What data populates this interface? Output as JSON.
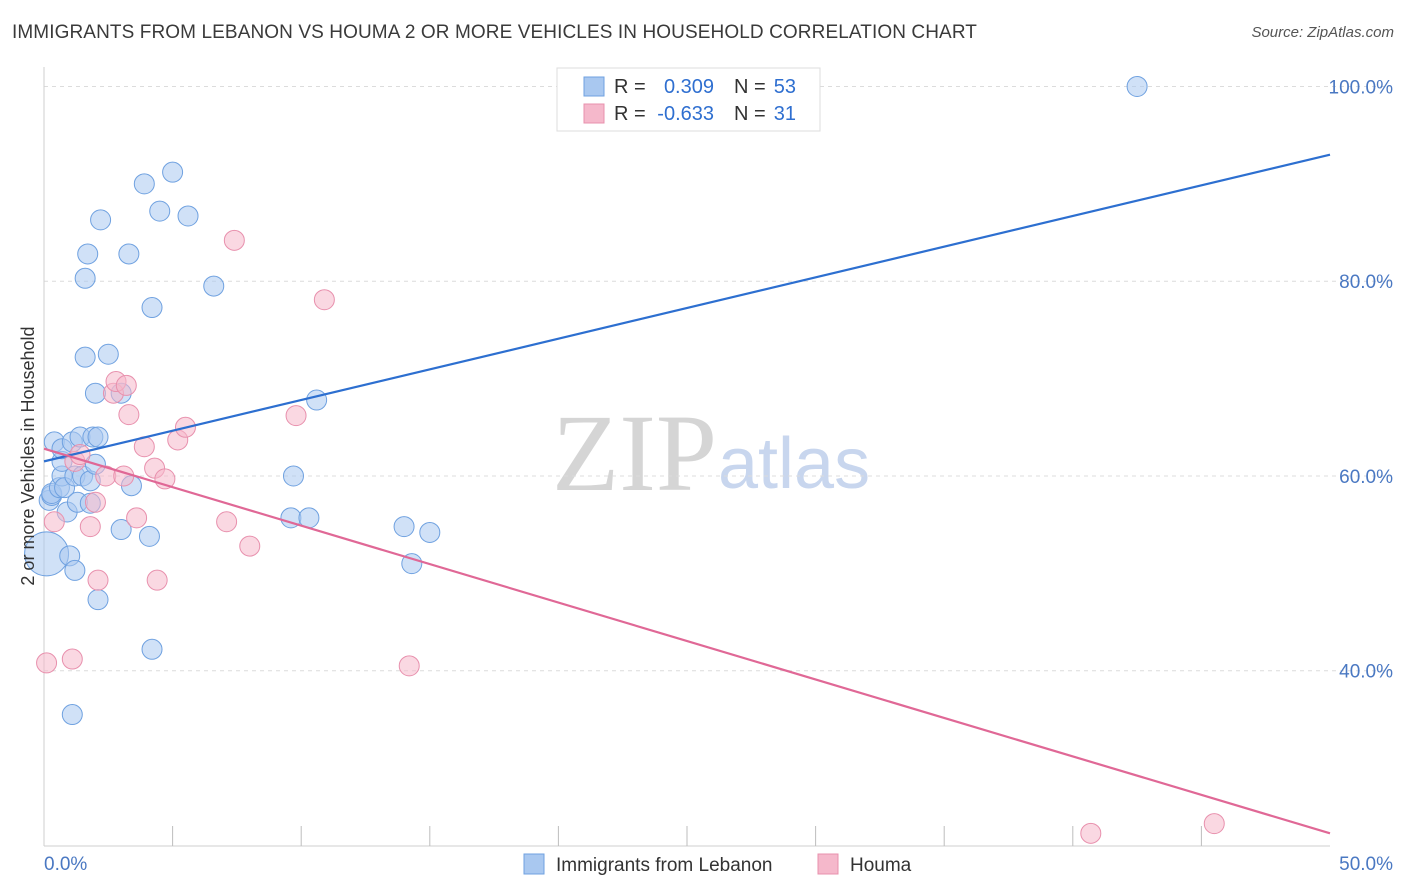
{
  "header": {
    "title": "IMMIGRANTS FROM LEBANON VS HOUMA 2 OR MORE VEHICLES IN HOUSEHOLD CORRELATION CHART",
    "source": "Source: ZipAtlas.com"
  },
  "watermark": {
    "zip": "ZIP",
    "atlas": "atlas"
  },
  "legend": {
    "rows": [
      {
        "r_label": "R =",
        "r_value": "0.309",
        "n_label": "N =",
        "n_value": "53",
        "color": "#a9c8f0"
      },
      {
        "r_label": "R =",
        "r_value": "-0.633",
        "n_label": "N =",
        "n_value": "31",
        "color": "#f5b8cb"
      }
    ]
  },
  "bottom_legend": {
    "items": [
      {
        "label": "Immigrants from Lebanon",
        "color": "#a9c8f0"
      },
      {
        "label": "Houma",
        "color": "#f5b8cb"
      }
    ]
  },
  "chart_data": {
    "type": "scatter",
    "ylabel": "2 or more Vehicles in Household",
    "xlabel": "",
    "xlim": [
      0,
      50
    ],
    "ylim": [
      22,
      102
    ],
    "x_tick_labels": [
      {
        "x": 0,
        "label": "0.0%"
      },
      {
        "x": 50,
        "label": "50.0%"
      }
    ],
    "y_tick_labels": [
      {
        "y": 100,
        "label": "100.0%"
      },
      {
        "y": 80,
        "label": "80.0%"
      },
      {
        "y": 60,
        "label": "60.0%"
      },
      {
        "y": 40,
        "label": "40.0%"
      }
    ],
    "y_gridlines": [
      100,
      80,
      60,
      40
    ],
    "x_minor_ticks": [
      5,
      10,
      15,
      20,
      25,
      30,
      35,
      40,
      45
    ],
    "series": [
      {
        "name": "Immigrants from Lebanon",
        "color": "#6fa1e0",
        "fill": "#a9c8f0",
        "trend": {
          "x": [
            0,
            50
          ],
          "y": [
            61.5,
            93.0
          ],
          "color": "#2d6fd0"
        },
        "points": [
          [
            0.1,
            52.0,
            22
          ],
          [
            0.2,
            57.5,
            10
          ],
          [
            0.3,
            58.0,
            10
          ],
          [
            0.3,
            58.2,
            10
          ],
          [
            0.4,
            63.5,
            10
          ],
          [
            0.6,
            58.8,
            10
          ],
          [
            0.7,
            60.0,
            10
          ],
          [
            0.7,
            61.5,
            10
          ],
          [
            0.7,
            62.8,
            10
          ],
          [
            0.8,
            58.8,
            10
          ],
          [
            0.9,
            56.3,
            10
          ],
          [
            1.0,
            51.8,
            10
          ],
          [
            1.1,
            63.5,
            10
          ],
          [
            1.1,
            35.5,
            10
          ],
          [
            1.2,
            50.3,
            10
          ],
          [
            1.2,
            60.0,
            10
          ],
          [
            1.3,
            57.3,
            10
          ],
          [
            1.4,
            64.0,
            10
          ],
          [
            1.5,
            60.0,
            10
          ],
          [
            1.6,
            72.2,
            10
          ],
          [
            1.6,
            80.3,
            10
          ],
          [
            1.7,
            82.8,
            10
          ],
          [
            1.8,
            59.5,
            10
          ],
          [
            1.8,
            57.2,
            10
          ],
          [
            1.9,
            64.0,
            10
          ],
          [
            2.0,
            61.2,
            10
          ],
          [
            2.0,
            68.5,
            10
          ],
          [
            2.1,
            64.0,
            10
          ],
          [
            2.1,
            47.3,
            10
          ],
          [
            2.2,
            86.3,
            10
          ],
          [
            2.5,
            72.5,
            10
          ],
          [
            3.0,
            68.5,
            10
          ],
          [
            3.0,
            54.5,
            10
          ],
          [
            3.3,
            82.8,
            10
          ],
          [
            3.4,
            59.0,
            10
          ],
          [
            3.9,
            90.0,
            10
          ],
          [
            4.1,
            53.8,
            10
          ],
          [
            4.2,
            42.2,
            10
          ],
          [
            4.2,
            77.3,
            10
          ],
          [
            4.5,
            87.2,
            10
          ],
          [
            5.0,
            91.2,
            10
          ],
          [
            5.6,
            86.7,
            10
          ],
          [
            6.6,
            79.5,
            10
          ],
          [
            9.6,
            55.7,
            10
          ],
          [
            9.7,
            60.0,
            10
          ],
          [
            10.3,
            55.7,
            10
          ],
          [
            10.6,
            67.8,
            10
          ],
          [
            14.0,
            54.8,
            10
          ],
          [
            14.3,
            51.0,
            10
          ],
          [
            15.0,
            54.2,
            10
          ],
          [
            42.5,
            100.0,
            10
          ]
        ]
      },
      {
        "name": "Houma",
        "color": "#e890ad",
        "fill": "#f5b8cb",
        "trend": {
          "x": [
            0,
            50
          ],
          "y": [
            62.8,
            23.3
          ],
          "color": "#e06896"
        },
        "points": [
          [
            0.1,
            40.8,
            10
          ],
          [
            0.4,
            55.3,
            10
          ],
          [
            1.1,
            41.2,
            10
          ],
          [
            1.2,
            61.5,
            10
          ],
          [
            1.4,
            62.2,
            10
          ],
          [
            1.8,
            54.8,
            10
          ],
          [
            2.0,
            57.3,
            10
          ],
          [
            2.1,
            49.3,
            10
          ],
          [
            2.4,
            60.0,
            10
          ],
          [
            2.7,
            68.5,
            10
          ],
          [
            2.8,
            69.7,
            10
          ],
          [
            3.1,
            60.0,
            10
          ],
          [
            3.2,
            69.3,
            10
          ],
          [
            3.3,
            66.3,
            10
          ],
          [
            3.6,
            55.7,
            10
          ],
          [
            3.9,
            63.0,
            10
          ],
          [
            4.3,
            60.8,
            10
          ],
          [
            4.4,
            49.3,
            10
          ],
          [
            4.7,
            59.7,
            10
          ],
          [
            5.2,
            63.7,
            10
          ],
          [
            5.5,
            65.0,
            10
          ],
          [
            7.1,
            55.3,
            10
          ],
          [
            7.4,
            84.2,
            10
          ],
          [
            8.0,
            52.8,
            10
          ],
          [
            9.8,
            66.2,
            10
          ],
          [
            10.9,
            78.1,
            10
          ],
          [
            14.2,
            40.5,
            10
          ],
          [
            40.7,
            23.3,
            10
          ],
          [
            45.5,
            24.3,
            10
          ]
        ]
      }
    ]
  }
}
